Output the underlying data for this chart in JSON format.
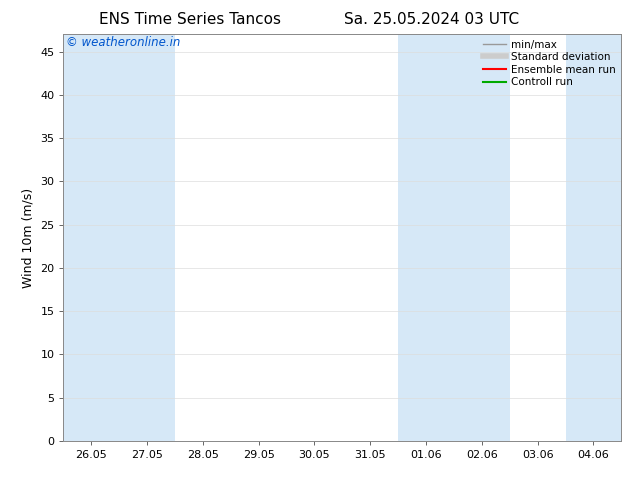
{
  "title_left": "ENS Time Series Tancos",
  "title_right": "Sa. 25.05.2024 03 UTC",
  "ylabel": "Wind 10m (m/s)",
  "watermark": "© weatheronline.in",
  "watermark_color": "#0055cc",
  "ylim": [
    0,
    47
  ],
  "yticks": [
    0,
    5,
    10,
    15,
    20,
    25,
    30,
    35,
    40,
    45
  ],
  "xtick_labels": [
    "26.05",
    "27.05",
    "28.05",
    "29.05",
    "30.05",
    "31.05",
    "01.06",
    "02.06",
    "03.06",
    "04.06"
  ],
  "xtick_positions": [
    0,
    1,
    2,
    3,
    4,
    5,
    6,
    7,
    8,
    9
  ],
  "shaded_columns": [
    0,
    1,
    6,
    7,
    9
  ],
  "shaded_color": "#d6e8f7",
  "bg_color": "#ffffff",
  "plot_bg_color": "#ffffff",
  "legend_items": [
    {
      "label": "min/max",
      "color": "#999999",
      "lw": 1.0
    },
    {
      "label": "Standard deviation",
      "color": "#cccccc",
      "lw": 4.0
    },
    {
      "label": "Ensemble mean run",
      "color": "#ff0000",
      "lw": 1.5
    },
    {
      "label": "Controll run",
      "color": "#00aa00",
      "lw": 1.5
    }
  ],
  "title_fontsize": 11,
  "ylabel_fontsize": 9,
  "tick_fontsize": 8,
  "watermark_fontsize": 8.5,
  "legend_fontsize": 7.5
}
